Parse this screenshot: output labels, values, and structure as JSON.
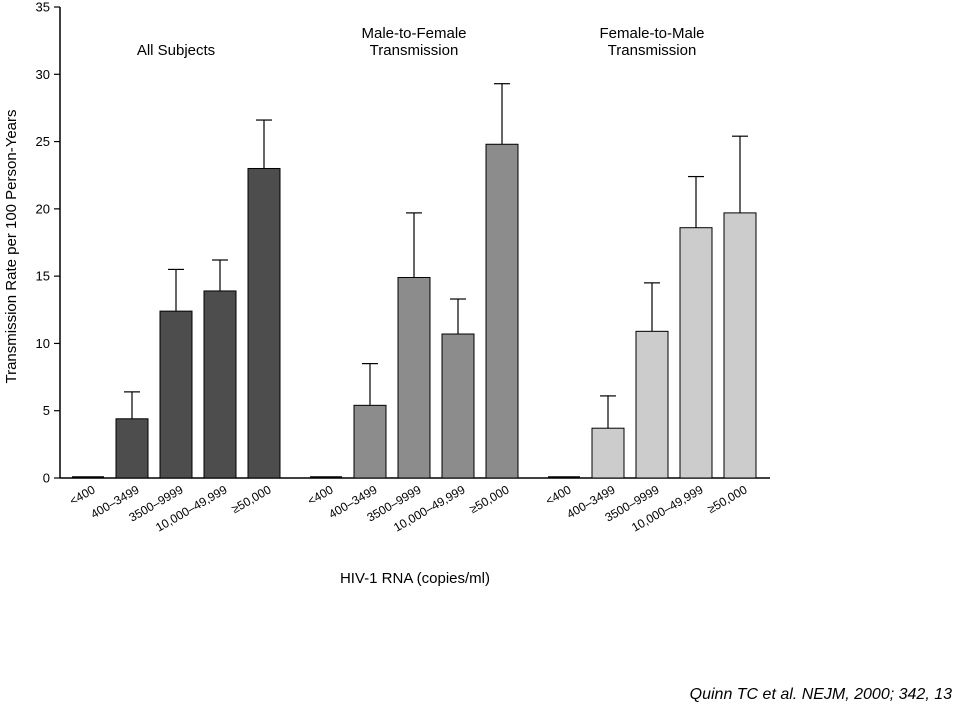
{
  "citation": "Quinn TC et al. NEJM, 2000; 342, 13",
  "chart_data": {
    "type": "bar",
    "ylabel": "Transmission Rate per 100 Person-Years",
    "xlabel": "HIV-1 RNA (copies/ml)",
    "ylim": [
      0,
      35
    ],
    "yticks": [
      0,
      5,
      10,
      15,
      20,
      25,
      30,
      35
    ],
    "grid": false,
    "categories": [
      "<400",
      "400–3499",
      "3500–9999",
      "10,000–49,999",
      "≥50,000"
    ],
    "groups": [
      {
        "title_lines": [
          "All Subjects"
        ],
        "color": "#4d4d4d",
        "values": [
          0,
          4.4,
          12.4,
          13.9,
          23.0
        ],
        "error_upper": [
          0,
          6.4,
          15.5,
          16.2,
          26.6
        ]
      },
      {
        "title_lines": [
          "Male-to-Female",
          "Transmission"
        ],
        "color": "#8c8c8c",
        "values": [
          0,
          5.4,
          14.9,
          10.7,
          24.8
        ],
        "error_upper": [
          0,
          8.5,
          19.7,
          13.3,
          29.3
        ]
      },
      {
        "title_lines": [
          "Female-to-Male",
          "Transmission"
        ],
        "color": "#cccccc",
        "values": [
          0,
          3.7,
          10.9,
          18.6,
          19.7
        ],
        "error_upper": [
          0,
          6.1,
          14.5,
          22.4,
          25.4
        ]
      }
    ]
  }
}
